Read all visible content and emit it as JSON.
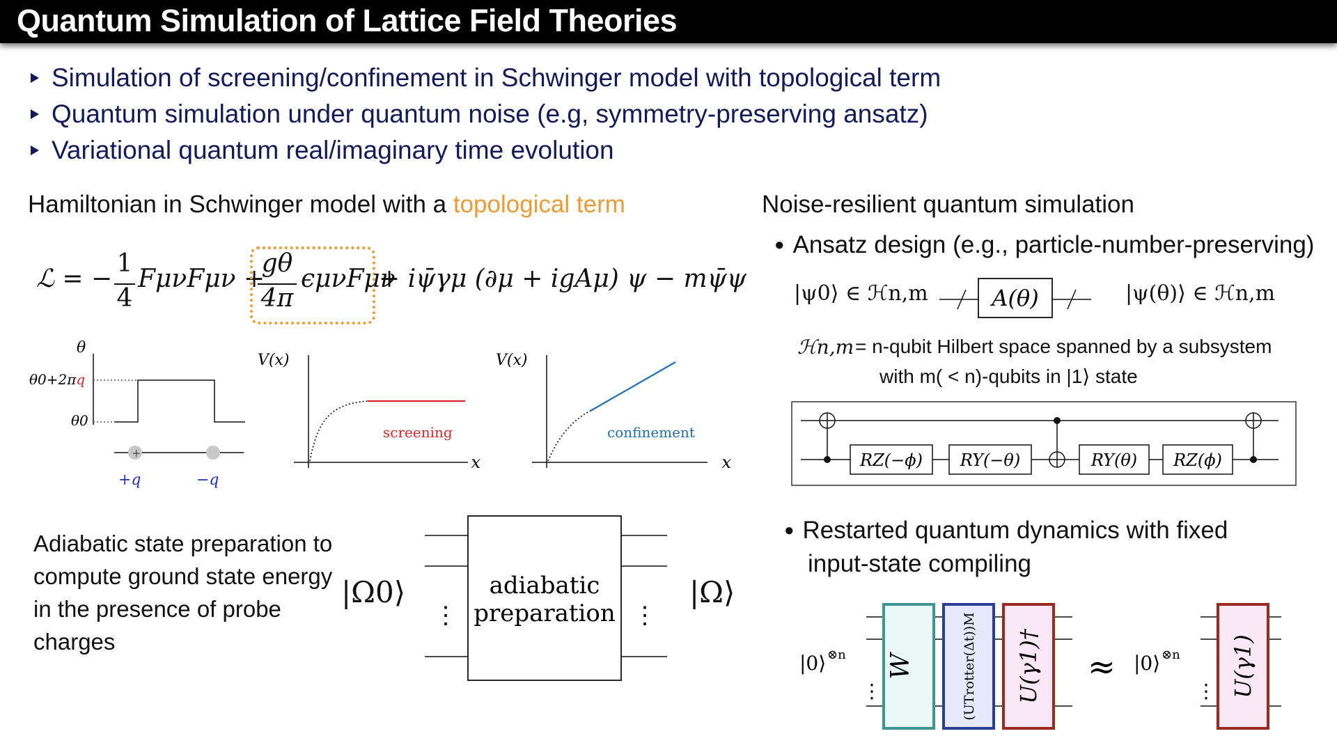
{
  "title": "Quantum Simulation of Lattice Field Theories",
  "bullets": [
    "Simulation of screening/confinement in Schwinger model with topological term",
    "Quantum simulation under quantum noise (e.g, symmetry-preserving ansatz)",
    "Variational quantum real/imaginary time evolution"
  ],
  "left": {
    "heading_prefix": "Hamiltonian in Schwinger model with a ",
    "heading_highlight": "topological term",
    "highlight_color": "#ef9b34",
    "lagrangian": {
      "lhs": "ℒ = −",
      "frac1_num": "1",
      "frac1_den": "4",
      "term1": "FμνFμν +",
      "frac2_num": "gθ",
      "frac2_den": "4π",
      "term2": "ϵμνFμν",
      "rest": "+  iψ̄γμ (∂μ + igAμ) ψ − mψ̄ψ"
    },
    "theta_plot": {
      "y_label": "θ",
      "tick_high": "θ0+2π",
      "tick_high_q": "q",
      "tick_low": "θ0",
      "charge_plus": "+",
      "label_plus_q": "+q",
      "label_minus_q": "−q"
    },
    "screening_plot": {
      "y_label": "V(x)",
      "x_label": "x",
      "curve_label": "screening",
      "color": "#d62728"
    },
    "confinement_plot": {
      "y_label": "V(x)",
      "x_label": "x",
      "curve_label": "confinement",
      "color": "#1f6fb4"
    },
    "adiabatic_text": "Adiabatic state preparation to compute ground state energy in the presence of probe charges",
    "adiabatic_box_line1": "adiabatic",
    "adiabatic_box_line2": "preparation",
    "input_state": "|Ω0⟩",
    "output_state": "|Ω⟩",
    "dots": "⋮"
  },
  "right": {
    "heading": "Noise-resilient quantum simulation",
    "bullet1": "Ansatz design (e.g., particle-number-preserving)",
    "ansatz_input": "|ψ0⟩ ∈ ℋn,m",
    "ansatz_gate": "A(θ)",
    "ansatz_output": "|ψ(θ)⟩ ∈ ℋn,m",
    "hilbert_symbol": "ℋn,m",
    "hilbert_def_line1": "= n-qubit Hilbert space spanned by a subsystem",
    "hilbert_def_line2": "with m( < n)-qubits in |1⟩ state",
    "gates": [
      "RZ(−ϕ)",
      "RY(−θ)",
      "RY(θ)",
      "RZ(ϕ)"
    ],
    "bullet2_line1": "Restarted quantum dynamics with fixed",
    "bullet2_line2": "input-state compiling",
    "zero_state": "|0⟩",
    "tensor": "⊗n",
    "gate_W": "W",
    "gate_trotter": "(UTrotter(Δt))M",
    "gate_U": "U(γ1)†",
    "approx": "≈",
    "gate_U2": "U(γ1)",
    "gate_colors": {
      "W": "#3e9591",
      "trotter": "#2b3f96",
      "U": "#9a2a20",
      "W_fill": "#eaf7f7",
      "trotter_fill": "#e6e8fb",
      "U_fill": "#fae8f6"
    }
  }
}
